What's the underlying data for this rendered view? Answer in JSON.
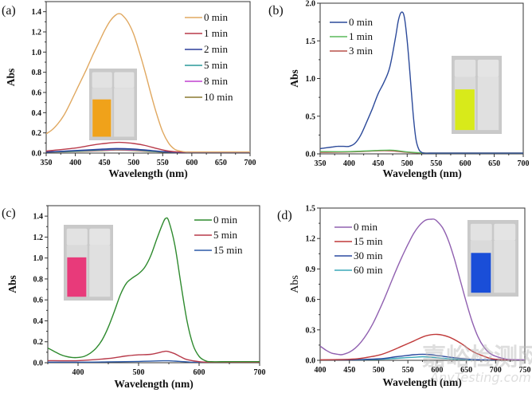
{
  "figure": {
    "watermark_cn": "嘉峪检测网",
    "watermark_en": "AnyTesting.com"
  },
  "chart_data": [
    {
      "id": "a",
      "type": "line",
      "panel_label": "(a)",
      "title": "",
      "xlabel": "Wavelength (nm)",
      "ylabel": "Abs",
      "xlim": [
        350,
        700
      ],
      "ylim": [
        0,
        1.5
      ],
      "xticks": [
        350,
        400,
        450,
        500,
        550,
        600,
        650,
        700
      ],
      "xtick_labels": [
        "350",
        "400",
        "450",
        "500",
        "550",
        "600",
        "650",
        "700"
      ],
      "yticks": [
        0,
        0.2,
        0.4,
        0.6,
        0.8,
        1.0,
        1.2,
        1.4
      ],
      "ytick_labels": [
        "0.0",
        "0.2",
        "0.4",
        "0.6",
        "0.8",
        "1.0",
        "1.2",
        "1.4"
      ],
      "legend": "top-right",
      "grid": false,
      "inset": {
        "description": "vials before/after",
        "solution_color": "#f0a21a"
      },
      "series": [
        {
          "name": "0 min",
          "color": "#e0a860",
          "x": [
            350,
            360,
            370,
            380,
            390,
            400,
            410,
            420,
            430,
            440,
            450,
            460,
            470,
            475,
            480,
            490,
            500,
            510,
            520,
            530,
            540,
            550,
            560,
            570,
            580,
            590,
            600,
            650,
            700
          ],
          "y": [
            0.19,
            0.23,
            0.29,
            0.37,
            0.48,
            0.6,
            0.72,
            0.84,
            0.97,
            1.09,
            1.21,
            1.31,
            1.37,
            1.38,
            1.37,
            1.3,
            1.18,
            1.0,
            0.8,
            0.58,
            0.38,
            0.21,
            0.1,
            0.04,
            0.02,
            0.01,
            0.01,
            0.01,
            0.01
          ]
        },
        {
          "name": "1 min",
          "color": "#b83a4a",
          "x": [
            350,
            400,
            430,
            450,
            470,
            480,
            500,
            520,
            540,
            560,
            580,
            600,
            700
          ],
          "y": [
            0.02,
            0.05,
            0.08,
            0.095,
            0.105,
            0.105,
            0.095,
            0.075,
            0.045,
            0.02,
            0.01,
            0.01,
            0.01
          ]
        },
        {
          "name": "2 min",
          "color": "#2b3f9a",
          "x": [
            350,
            400,
            450,
            470,
            500,
            530,
            560,
            600,
            700
          ],
          "y": [
            0.01,
            0.025,
            0.04,
            0.045,
            0.04,
            0.025,
            0.01,
            0.005,
            0.005
          ]
        },
        {
          "name": "5 min",
          "color": "#2a9a9a",
          "x": [
            350,
            400,
            450,
            470,
            500,
            530,
            560,
            600,
            700
          ],
          "y": [
            0.01,
            0.02,
            0.035,
            0.04,
            0.035,
            0.02,
            0.01,
            0.005,
            0.005
          ]
        },
        {
          "name": "8 min",
          "color": "#c040d0",
          "x": [
            350,
            400,
            450,
            470,
            500,
            530,
            560,
            600,
            700
          ],
          "y": [
            0.01,
            0.02,
            0.03,
            0.035,
            0.03,
            0.02,
            0.01,
            0.005,
            0.005
          ]
        },
        {
          "name": "10 min",
          "color": "#8a7a30",
          "x": [
            350,
            400,
            450,
            470,
            500,
            530,
            560,
            600,
            700
          ],
          "y": [
            0.01,
            0.015,
            0.025,
            0.03,
            0.025,
            0.015,
            0.008,
            0.005,
            0.005
          ]
        }
      ]
    },
    {
      "id": "b",
      "type": "line",
      "panel_label": "(b)",
      "title": "",
      "xlabel": "Wavelength (nm)",
      "ylabel": "Abs",
      "xlim": [
        350,
        700
      ],
      "ylim": [
        0,
        2.0
      ],
      "xticks": [
        350,
        400,
        450,
        500,
        550,
        600,
        650,
        700
      ],
      "xtick_labels": [
        "350",
        "400",
        "450",
        "500",
        "550",
        "600",
        "650",
        "700"
      ],
      "yticks": [
        0,
        0.5,
        1.0,
        1.5,
        2.0
      ],
      "ytick_labels": [
        "0.0",
        "0.5",
        "1.0",
        "1.5",
        "2.0"
      ],
      "legend": "top-left",
      "grid": false,
      "inset": {
        "description": "vials before/after",
        "solution_color": "#d8ea1a"
      },
      "series": [
        {
          "name": "0 min",
          "color": "#2c4a9a",
          "x": [
            350,
            360,
            370,
            380,
            390,
            400,
            410,
            420,
            430,
            440,
            450,
            460,
            470,
            480,
            485,
            490,
            495,
            500,
            505,
            510,
            515,
            520,
            525,
            530,
            550,
            600,
            700
          ],
          "y": [
            0.07,
            0.08,
            0.09,
            0.1,
            0.1,
            0.1,
            0.14,
            0.25,
            0.42,
            0.6,
            0.8,
            0.95,
            1.15,
            1.55,
            1.78,
            1.88,
            1.82,
            1.5,
            1.05,
            0.55,
            0.2,
            0.06,
            0.02,
            0.01,
            0.01,
            0.01,
            0.01
          ]
        },
        {
          "name": "1 min",
          "color": "#5ab85a",
          "x": [
            350,
            400,
            450,
            470,
            480,
            500,
            520,
            550,
            700
          ],
          "y": [
            0.03,
            0.03,
            0.045,
            0.05,
            0.045,
            0.025,
            0.015,
            0.01,
            0.01
          ]
        },
        {
          "name": "3 min",
          "color": "#b8504a",
          "x": [
            350,
            400,
            450,
            470,
            480,
            500,
            520,
            550,
            700
          ],
          "y": [
            0.02,
            0.025,
            0.04,
            0.04,
            0.035,
            0.02,
            0.012,
            0.01,
            0.01
          ]
        }
      ]
    },
    {
      "id": "c",
      "type": "line",
      "panel_label": "(c)",
      "title": "",
      "xlabel": "Wavelength (nm)",
      "ylabel": "Abs",
      "xlim": [
        350,
        700
      ],
      "ylim": [
        0,
        1.5
      ],
      "xticks": [
        400,
        500,
        600,
        700
      ],
      "xtick_labels": [
        "400",
        "500",
        "600",
        "700"
      ],
      "yticks": [
        0,
        0.2,
        0.4,
        0.6,
        0.8,
        1.0,
        1.2,
        1.4
      ],
      "ytick_labels": [
        "0.0",
        "0.2",
        "0.4",
        "0.6",
        "0.8",
        "1.0",
        "1.2",
        "1.4"
      ],
      "legend": "top-right",
      "grid": false,
      "inset": {
        "description": "vials before/after",
        "solution_color": "#e83a7a"
      },
      "series": [
        {
          "name": "0 min",
          "color": "#2e8a2e",
          "x": [
            350,
            360,
            370,
            380,
            390,
            400,
            410,
            420,
            430,
            440,
            450,
            460,
            470,
            480,
            490,
            500,
            510,
            520,
            530,
            540,
            545,
            550,
            560,
            570,
            580,
            590,
            600,
            610,
            620,
            650,
            700
          ],
          "y": [
            0.14,
            0.11,
            0.08,
            0.06,
            0.05,
            0.05,
            0.06,
            0.09,
            0.14,
            0.22,
            0.34,
            0.49,
            0.65,
            0.76,
            0.81,
            0.85,
            0.91,
            1.02,
            1.18,
            1.33,
            1.38,
            1.35,
            1.12,
            0.75,
            0.4,
            0.17,
            0.06,
            0.02,
            0.01,
            0.01,
            0.01
          ]
        },
        {
          "name": "5 min",
          "color": "#b83a4a",
          "x": [
            350,
            400,
            450,
            480,
            500,
            520,
            540,
            545,
            550,
            560,
            570,
            580,
            600,
            620,
            700
          ],
          "y": [
            0.02,
            0.02,
            0.04,
            0.065,
            0.075,
            0.08,
            0.105,
            0.11,
            0.105,
            0.085,
            0.055,
            0.03,
            0.01,
            0.005,
            0.005
          ]
        },
        {
          "name": "15 min",
          "color": "#2c5aa8",
          "x": [
            350,
            400,
            450,
            500,
            540,
            550,
            560,
            580,
            600,
            700
          ],
          "y": [
            0.005,
            0.005,
            0.008,
            0.012,
            0.018,
            0.018,
            0.015,
            0.008,
            0.004,
            0.003
          ]
        }
      ]
    },
    {
      "id": "d",
      "type": "line",
      "panel_label": "(d)",
      "title": "",
      "xlabel": "Wavelength (nm)",
      "ylabel": "Abs",
      "xlim": [
        400,
        750
      ],
      "ylim": [
        0,
        1.5
      ],
      "xticks": [
        400,
        450,
        500,
        550,
        600,
        650,
        700,
        750
      ],
      "xtick_labels": [
        "400",
        "450",
        "500",
        "550",
        "600",
        "650",
        "700",
        "750"
      ],
      "yticks": [
        0,
        0.3,
        0.6,
        0.9,
        1.2,
        1.5
      ],
      "ytick_labels": [
        "0.0",
        "0.3",
        "0.6",
        "0.9",
        "1.2",
        "1.5"
      ],
      "legend": "top-left",
      "grid": false,
      "inset": {
        "description": "vials before/after",
        "solution_color": "#1a4ed8"
      },
      "series": [
        {
          "name": "0 min",
          "color": "#9060b0",
          "x": [
            400,
            410,
            420,
            430,
            435,
            440,
            450,
            460,
            470,
            480,
            490,
            500,
            510,
            520,
            530,
            540,
            550,
            560,
            570,
            580,
            590,
            595,
            600,
            610,
            620,
            630,
            640,
            650,
            660,
            670,
            680,
            690,
            700,
            720,
            750
          ],
          "y": [
            0.14,
            0.1,
            0.07,
            0.06,
            0.055,
            0.06,
            0.08,
            0.12,
            0.18,
            0.26,
            0.36,
            0.48,
            0.61,
            0.75,
            0.89,
            1.02,
            1.14,
            1.25,
            1.33,
            1.38,
            1.39,
            1.39,
            1.37,
            1.3,
            1.17,
            0.99,
            0.78,
            0.57,
            0.38,
            0.23,
            0.13,
            0.07,
            0.04,
            0.01,
            0.005
          ]
        },
        {
          "name": "15 min",
          "color": "#c03a3a",
          "x": [
            400,
            450,
            470,
            500,
            520,
            540,
            560,
            580,
            600,
            620,
            640,
            660,
            680,
            700,
            750
          ],
          "y": [
            0.005,
            0.01,
            0.02,
            0.05,
            0.09,
            0.14,
            0.19,
            0.24,
            0.255,
            0.23,
            0.17,
            0.09,
            0.04,
            0.01,
            0.003
          ]
        },
        {
          "name": "30 min",
          "color": "#2c4aa0",
          "x": [
            400,
            450,
            500,
            530,
            560,
            575,
            590,
            610,
            630,
            660,
            700,
            750
          ],
          "y": [
            0.003,
            0.005,
            0.015,
            0.035,
            0.055,
            0.06,
            0.055,
            0.04,
            0.025,
            0.008,
            0.003,
            0.002
          ]
        },
        {
          "name": "60 min",
          "color": "#3aa8b8",
          "x": [
            400,
            450,
            500,
            530,
            560,
            575,
            590,
            610,
            630,
            660,
            700,
            750
          ],
          "y": [
            0.002,
            0.004,
            0.01,
            0.02,
            0.03,
            0.035,
            0.03,
            0.02,
            0.012,
            0.005,
            0.002,
            0.002
          ]
        }
      ]
    }
  ]
}
